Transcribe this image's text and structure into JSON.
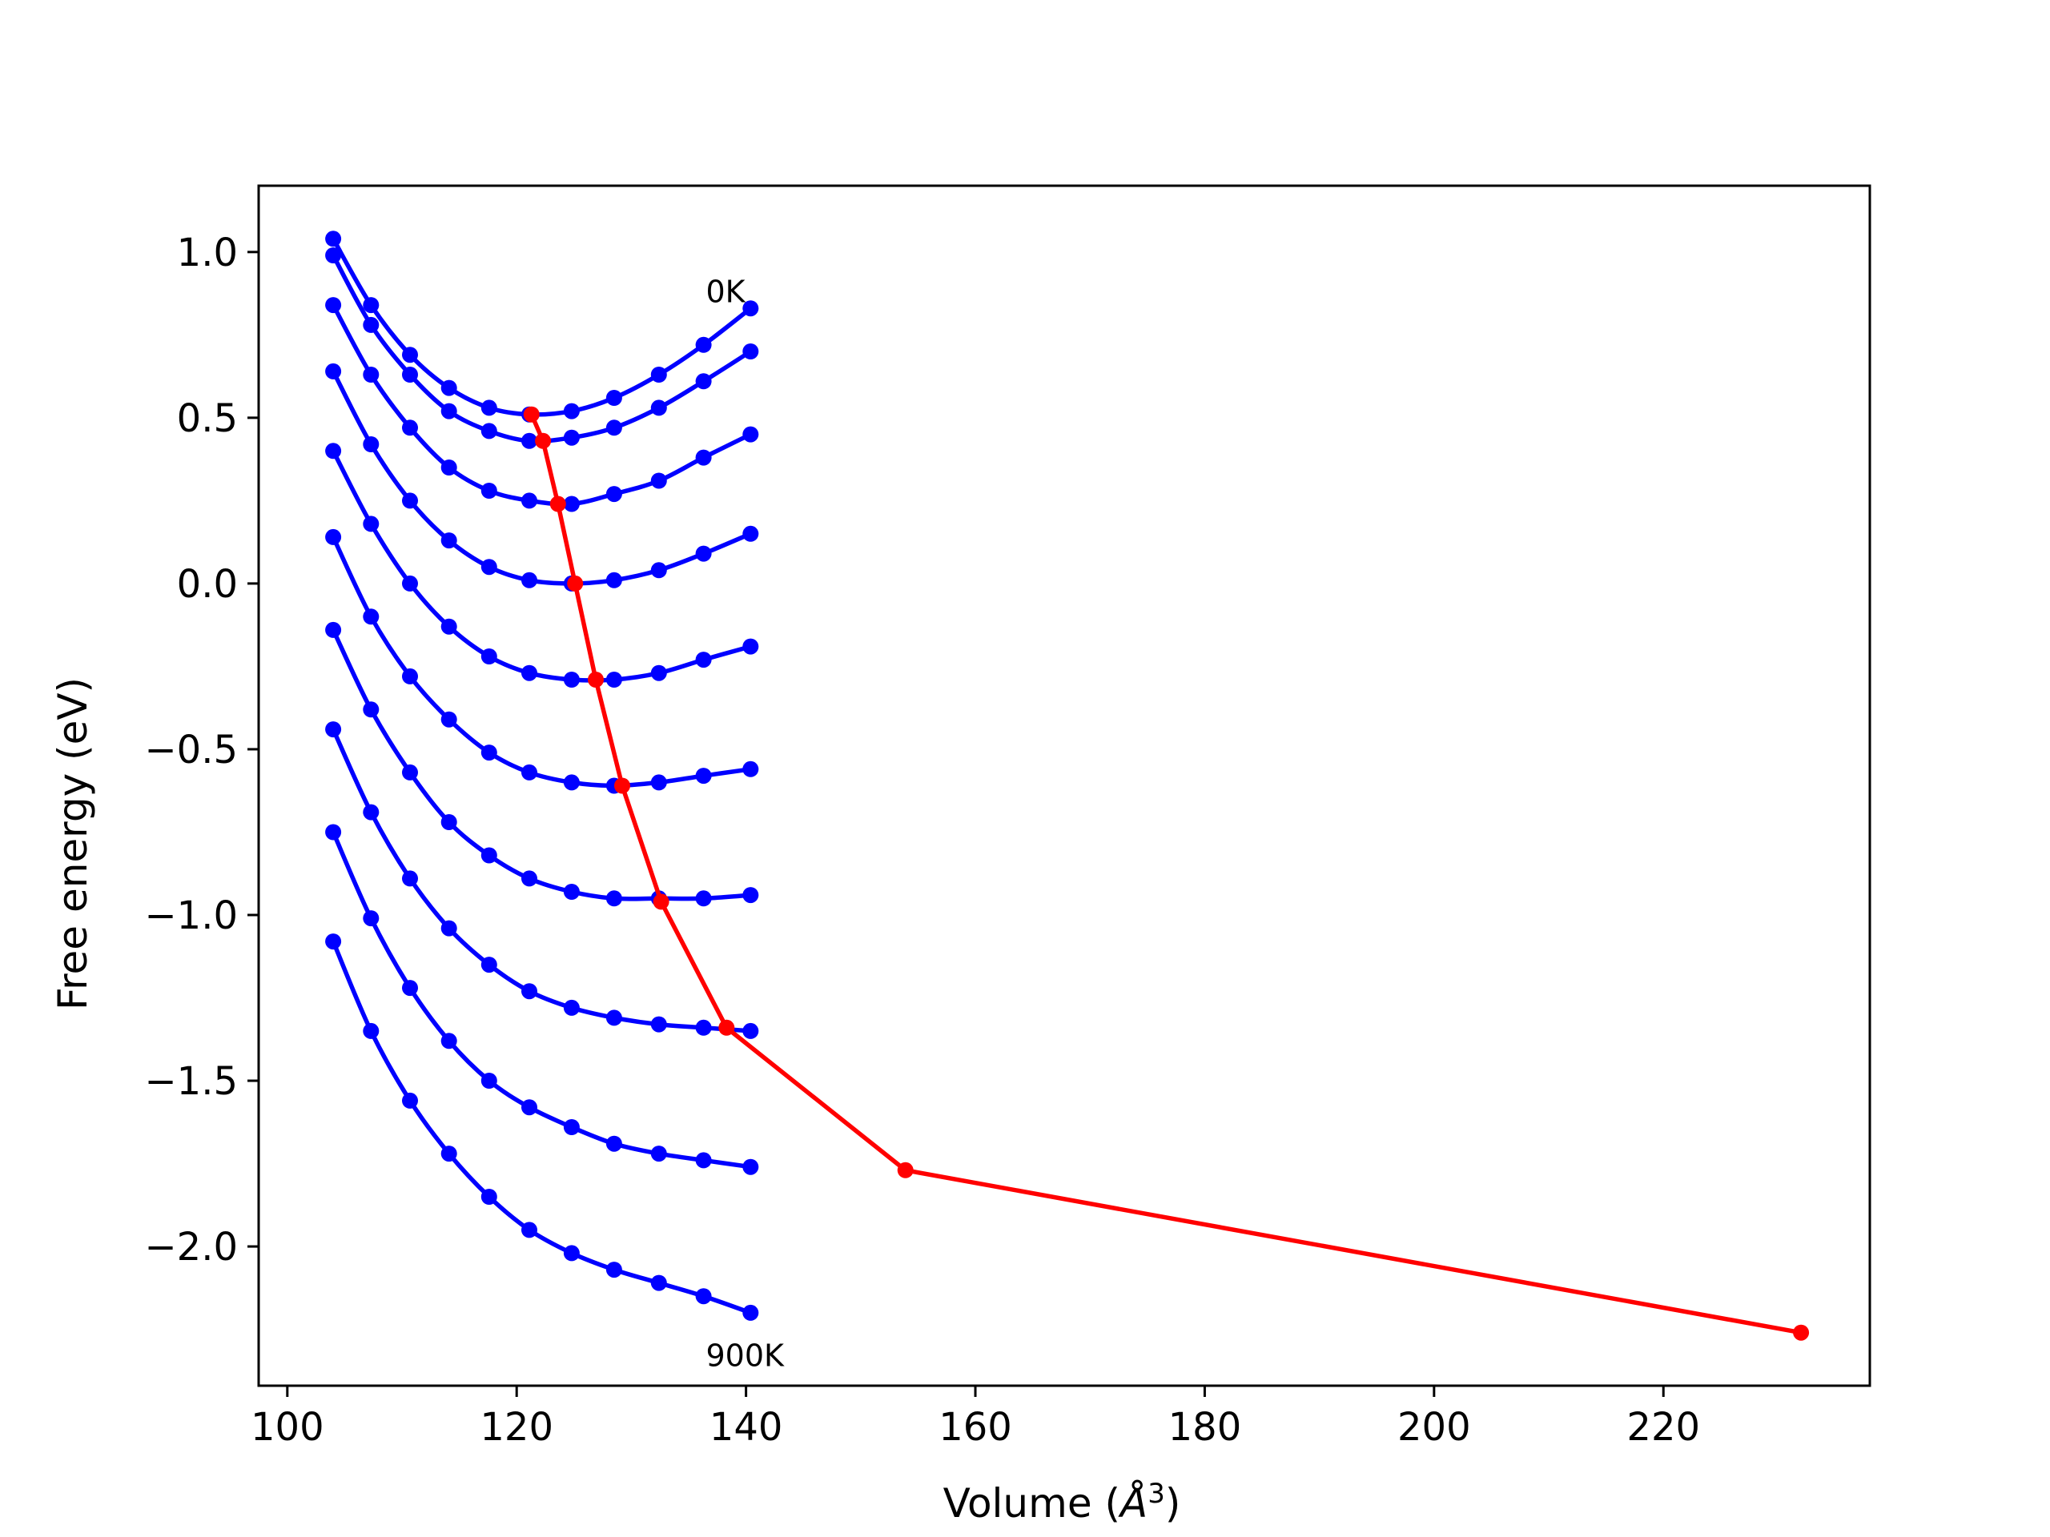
{
  "chart_data": {
    "type": "line",
    "xlabel": "Volume (",
    "xlabel_unit": "Å",
    "xlabel_sup": "3",
    "xlabel_close": ")",
    "ylabel": "Free energy (eV)",
    "xlim": [
      97.5,
      238
    ],
    "ylim": [
      -2.42,
      1.2
    ],
    "xticks": [
      {
        "value": 100,
        "label": "100"
      },
      {
        "value": 120,
        "label": "120"
      },
      {
        "value": 140,
        "label": "140"
      },
      {
        "value": 160,
        "label": "160"
      },
      {
        "value": 180,
        "label": "180"
      },
      {
        "value": 200,
        "label": "200"
      },
      {
        "value": 220,
        "label": "220"
      }
    ],
    "yticks": [
      {
        "value": 1.0,
        "label": "1.0"
      },
      {
        "value": 0.5,
        "label": "0.5"
      },
      {
        "value": 0.0,
        "label": "0.0"
      },
      {
        "value": -0.5,
        "label": "−0.5"
      },
      {
        "value": -1.0,
        "label": "−1.0"
      },
      {
        "value": -1.5,
        "label": "−1.5"
      },
      {
        "value": -2.0,
        "label": "−2.0"
      }
    ],
    "grid": false,
    "colors": {
      "curves": "#0000ff",
      "minima": "#ff0000"
    },
    "x": [
      104.0,
      107.3,
      110.7,
      114.1,
      117.6,
      121.1,
      124.8,
      128.5,
      132.4,
      136.3,
      140.4
    ],
    "series": [
      {
        "values": [
          1.04,
          0.84,
          0.69,
          0.59,
          0.53,
          0.51,
          0.52,
          0.56,
          0.63,
          0.72,
          0.83
        ]
      },
      {
        "values": [
          0.99,
          0.78,
          0.63,
          0.52,
          0.46,
          0.43,
          0.44,
          0.47,
          0.53,
          0.61,
          0.7
        ]
      },
      {
        "values": [
          0.84,
          0.63,
          0.47,
          0.35,
          0.28,
          0.25,
          0.24,
          0.27,
          0.31,
          0.38,
          0.45
        ]
      },
      {
        "values": [
          0.64,
          0.42,
          0.25,
          0.13,
          0.05,
          0.01,
          0.0,
          0.01,
          0.04,
          0.09,
          0.15
        ]
      },
      {
        "values": [
          0.4,
          0.18,
          0.0,
          -0.13,
          -0.22,
          -0.27,
          -0.29,
          -0.29,
          -0.27,
          -0.23,
          -0.19
        ]
      },
      {
        "values": [
          0.14,
          -0.1,
          -0.28,
          -0.41,
          -0.51,
          -0.57,
          -0.6,
          -0.61,
          -0.6,
          -0.58,
          -0.56
        ]
      },
      {
        "values": [
          -0.14,
          -0.38,
          -0.57,
          -0.72,
          -0.82,
          -0.89,
          -0.93,
          -0.95,
          -0.95,
          -0.95,
          -0.94
        ]
      },
      {
        "values": [
          -0.44,
          -0.69,
          -0.89,
          -1.04,
          -1.15,
          -1.23,
          -1.28,
          -1.31,
          -1.33,
          -1.34,
          -1.35
        ]
      },
      {
        "values": [
          -0.75,
          -1.01,
          -1.22,
          -1.38,
          -1.5,
          -1.58,
          -1.64,
          -1.69,
          -1.72,
          -1.74,
          -1.76
        ]
      },
      {
        "values": [
          -1.08,
          -1.35,
          -1.56,
          -1.72,
          -1.85,
          -1.95,
          -2.02,
          -2.07,
          -2.11,
          -2.15,
          -2.2
        ]
      }
    ],
    "minima": {
      "x": [
        121.3,
        122.3,
        123.6,
        125.1,
        126.9,
        129.2,
        132.6,
        138.3,
        153.9,
        232.0
      ],
      "y": [
        0.51,
        0.43,
        0.24,
        0.0,
        -0.29,
        -0.61,
        -0.96,
        -1.34,
        -1.77,
        -2.26
      ]
    },
    "annotations": [
      {
        "text": "0K",
        "x": 136.5,
        "y": 0.88
      },
      {
        "text": "900K",
        "x": 136.5,
        "y": -2.33
      }
    ]
  }
}
